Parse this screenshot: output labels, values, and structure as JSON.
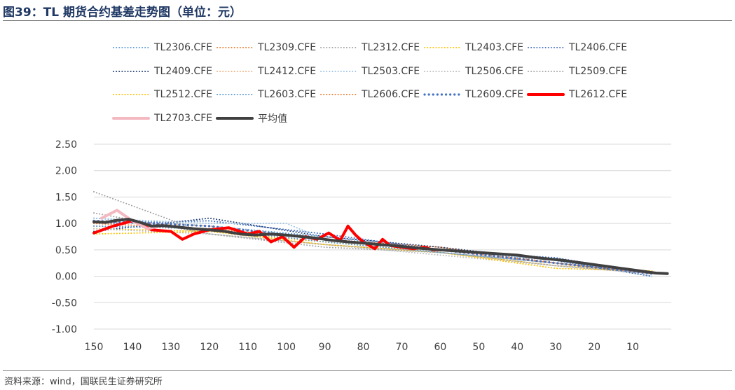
{
  "title": "图39：TL 期货合约基差走势图（单位：元）",
  "source": "资料来源：wind，国联民生证券研究所",
  "chart_data": {
    "type": "line",
    "xlabel": "",
    "ylabel": "",
    "xlim": [
      150,
      0
    ],
    "ylim": [
      -1.0,
      2.5
    ],
    "yticks": [
      "2.50",
      "2.00",
      "1.50",
      "1.00",
      "0.50",
      "0.00",
      "-0.50",
      "-1.00"
    ],
    "xticks": [
      "150",
      "140",
      "130",
      "120",
      "110",
      "100",
      "90",
      "80",
      "70",
      "60",
      "50",
      "40",
      "30",
      "20",
      "10"
    ],
    "grid": true,
    "legend_position": "top",
    "series": [
      {
        "name": "TL2306.CFE",
        "color": "#5b9bd5",
        "style": "dotted",
        "values": [
          [
            150,
            1.1
          ],
          [
            120,
            0.95
          ],
          [
            90,
            0.75
          ],
          [
            60,
            0.5
          ],
          [
            30,
            0.3
          ],
          [
            5,
            0.05
          ]
        ]
      },
      {
        "name": "TL2309.CFE",
        "color": "#ed7d31",
        "style": "dotted",
        "values": [
          [
            150,
            0.95
          ],
          [
            120,
            0.9
          ],
          [
            90,
            0.7
          ],
          [
            60,
            0.55
          ],
          [
            30,
            0.25
          ],
          [
            5,
            0.05
          ]
        ]
      },
      {
        "name": "TL2312.CFE",
        "color": "#a5a5a5",
        "style": "dotted",
        "values": [
          [
            150,
            1.2
          ],
          [
            120,
            0.8
          ],
          [
            90,
            0.6
          ],
          [
            60,
            0.45
          ],
          [
            30,
            0.25
          ],
          [
            5,
            0.05
          ]
        ]
      },
      {
        "name": "TL2403.CFE",
        "color": "#ffc000",
        "style": "dotted",
        "values": [
          [
            150,
            0.9
          ],
          [
            120,
            0.85
          ],
          [
            90,
            0.65
          ],
          [
            60,
            0.45
          ],
          [
            30,
            0.2
          ],
          [
            5,
            0.1
          ]
        ]
      },
      {
        "name": "TL2406.CFE",
        "color": "#4472c4",
        "style": "dotted",
        "values": [
          [
            150,
            1.0
          ],
          [
            120,
            1.05
          ],
          [
            90,
            0.8
          ],
          [
            60,
            0.5
          ],
          [
            30,
            0.35
          ],
          [
            5,
            0.05
          ]
        ]
      },
      {
        "name": "TL2409.CFE",
        "color": "#264478",
        "style": "dotted",
        "values": [
          [
            150,
            0.85
          ],
          [
            120,
            1.1
          ],
          [
            90,
            0.75
          ],
          [
            60,
            0.55
          ],
          [
            30,
            0.3
          ],
          [
            5,
            0.0
          ]
        ]
      },
      {
        "name": "TL2412.CFE",
        "color": "#f4b183",
        "style": "dotted",
        "values": [
          [
            150,
            1.05
          ],
          [
            120,
            0.95
          ],
          [
            90,
            0.7
          ],
          [
            60,
            0.5
          ],
          [
            30,
            0.25
          ],
          [
            5,
            0.05
          ]
        ]
      },
      {
        "name": "TL2503.CFE",
        "color": "#9dc3e6",
        "style": "dotted",
        "values": [
          [
            150,
            1.1
          ],
          [
            120,
            1.0
          ],
          [
            100,
            1.0
          ],
          [
            90,
            0.7
          ],
          [
            60,
            0.5
          ],
          [
            30,
            0.3
          ],
          [
            5,
            0.0
          ]
        ]
      },
      {
        "name": "TL2506.CFE",
        "color": "#bfbfbf",
        "style": "dotted",
        "values": [
          [
            150,
            0.9
          ],
          [
            120,
            0.8
          ],
          [
            90,
            0.6
          ],
          [
            60,
            0.4
          ],
          [
            30,
            0.2
          ],
          [
            5,
            0.05
          ]
        ]
      },
      {
        "name": "TL2509.CFE",
        "color": "#a6a6a6",
        "style": "dotted",
        "values": [
          [
            150,
            1.6
          ],
          [
            120,
            0.8
          ],
          [
            90,
            0.55
          ],
          [
            60,
            0.45
          ],
          [
            30,
            0.2
          ],
          [
            5,
            0.05
          ]
        ]
      },
      {
        "name": "TL2512.CFE",
        "color": "#ffc000",
        "style": "dotted",
        "values": [
          [
            150,
            0.8
          ],
          [
            120,
            0.85
          ],
          [
            90,
            0.6
          ],
          [
            60,
            0.45
          ],
          [
            30,
            0.15
          ],
          [
            5,
            0.1
          ]
        ]
      },
      {
        "name": "TL2603.CFE",
        "color": "#5b9bd5",
        "style": "dotted",
        "values": [
          [
            150,
            0.95
          ],
          [
            120,
            0.9
          ],
          [
            90,
            0.65
          ],
          [
            60,
            0.45
          ],
          [
            30,
            0.25
          ],
          [
            5,
            0.05
          ]
        ]
      },
      {
        "name": "TL2606.CFE",
        "color": "#ed7d31",
        "style": "dotted",
        "values": [
          [
            150,
            1.0
          ],
          [
            120,
            0.9
          ],
          [
            90,
            0.7
          ],
          [
            60,
            0.5
          ],
          [
            30,
            0.25
          ],
          [
            5,
            0.05
          ]
        ]
      },
      {
        "name": "TL2609.CFE",
        "color": "#4472c4",
        "style": "bold-dotted",
        "values": [
          [
            150,
            1.05
          ],
          [
            120,
            0.95
          ],
          [
            90,
            0.7
          ],
          [
            60,
            0.5
          ],
          [
            30,
            0.25
          ],
          [
            5,
            0.05
          ]
        ]
      },
      {
        "name": "TL2612.CFE",
        "color": "#ff0000",
        "style": "solid",
        "values": [
          [
            150,
            0.82
          ],
          [
            145,
            0.95
          ],
          [
            140,
            1.05
          ],
          [
            135,
            0.88
          ],
          [
            130,
            0.85
          ],
          [
            127,
            0.7
          ],
          [
            124,
            0.8
          ],
          [
            120,
            0.88
          ],
          [
            115,
            0.92
          ],
          [
            110,
            0.8
          ],
          [
            107,
            0.85
          ],
          [
            104,
            0.65
          ],
          [
            101,
            0.75
          ],
          [
            98,
            0.55
          ],
          [
            95,
            0.75
          ],
          [
            92,
            0.7
          ],
          [
            89,
            0.82
          ],
          [
            86,
            0.68
          ],
          [
            84,
            0.95
          ],
          [
            82,
            0.78
          ],
          [
            80,
            0.65
          ],
          [
            77,
            0.52
          ],
          [
            75,
            0.7
          ],
          [
            73,
            0.58
          ],
          [
            70,
            0.55
          ],
          [
            67,
            0.52
          ],
          [
            64,
            0.55
          ],
          [
            62,
            0.5
          ],
          [
            60,
            0.5
          ]
        ]
      },
      {
        "name": "TL2703.CFE",
        "color": "#f4b8c0",
        "style": "solid",
        "values": [
          [
            148,
            1.1
          ],
          [
            144,
            1.25
          ],
          [
            140,
            1.05
          ],
          [
            136,
            0.9
          ],
          [
            133,
            0.95
          ]
        ]
      },
      {
        "name": "平均值",
        "color": "#404040",
        "style": "solid",
        "values": [
          [
            150,
            1.03
          ],
          [
            147,
            1.02
          ],
          [
            144,
            1.06
          ],
          [
            141,
            1.08
          ],
          [
            138,
            1.02
          ],
          [
            135,
            0.95
          ],
          [
            132,
            0.96
          ],
          [
            128,
            0.93
          ],
          [
            124,
            0.9
          ],
          [
            120,
            0.88
          ],
          [
            116,
            0.85
          ],
          [
            112,
            0.8
          ],
          [
            108,
            0.78
          ],
          [
            104,
            0.8
          ],
          [
            100,
            0.78
          ],
          [
            96,
            0.75
          ],
          [
            92,
            0.72
          ],
          [
            88,
            0.68
          ],
          [
            84,
            0.65
          ],
          [
            80,
            0.63
          ],
          [
            76,
            0.6
          ],
          [
            72,
            0.58
          ],
          [
            68,
            0.55
          ],
          [
            64,
            0.52
          ],
          [
            60,
            0.5
          ],
          [
            56,
            0.48
          ],
          [
            52,
            0.46
          ],
          [
            48,
            0.44
          ],
          [
            44,
            0.42
          ],
          [
            40,
            0.4
          ],
          [
            36,
            0.36
          ],
          [
            32,
            0.33
          ],
          [
            28,
            0.3
          ],
          [
            24,
            0.26
          ],
          [
            20,
            0.22
          ],
          [
            16,
            0.18
          ],
          [
            12,
            0.14
          ],
          [
            8,
            0.1
          ],
          [
            4,
            0.06
          ],
          [
            1,
            0.05
          ]
        ]
      }
    ]
  }
}
